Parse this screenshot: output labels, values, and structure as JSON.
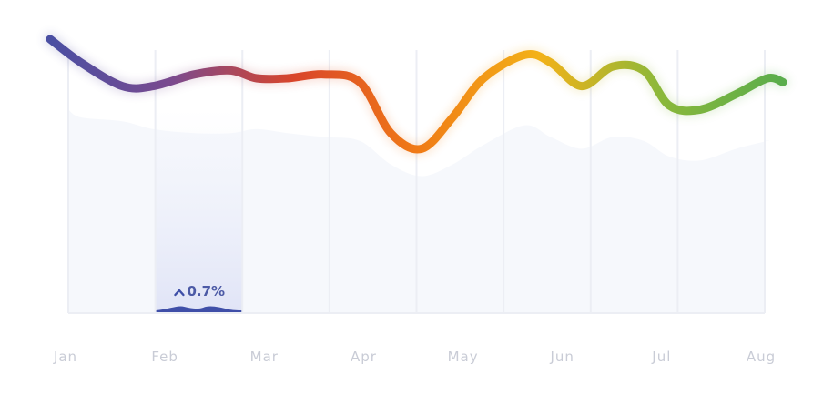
{
  "chart_data": {
    "type": "line",
    "title": "",
    "xlabel": "",
    "ylabel": "",
    "categories": [
      "Jan",
      "Feb",
      "Mar",
      "Apr",
      "May",
      "Jun",
      "Jul",
      "Aug"
    ],
    "x": [
      0,
      0.3,
      0.7,
      1,
      1.4,
      1.75,
      2,
      2.3,
      2.65,
      3,
      3.3,
      3.6,
      3.9,
      4.2,
      4.6,
      4.85,
      5.15,
      5.45,
      5.75,
      6,
      6.3,
      6.65,
      6.95,
      7.1
    ],
    "series": [
      {
        "name": "",
        "values": [
          70,
          64,
          58,
          58,
          61,
          62,
          60,
          60,
          61,
          59,
          46,
          42,
          50,
          60,
          66,
          64,
          58,
          63,
          62,
          53,
          52,
          56,
          60,
          59
        ]
      }
    ],
    "background_area": [
      {
        "name": "",
        "values": [
          52,
          50,
          49,
          47,
          46,
          46,
          47,
          46,
          45,
          44,
          38,
          35,
          38,
          43,
          48,
          45,
          42,
          45,
          44,
          40,
          39,
          42,
          44,
          44
        ]
      }
    ],
    "ylim": [
      0,
      80
    ],
    "grid": true,
    "line_gradient": [
      "#4a4fa3",
      "#7b4a8e",
      "#d9452a",
      "#f07a16",
      "#f3b218",
      "#8bb83a",
      "#5aad4c"
    ],
    "highlight": {
      "category": "Feb",
      "change_label": "0.7%",
      "direction_icon": "chevron-up-icon",
      "color": "#3f4fa8"
    }
  }
}
